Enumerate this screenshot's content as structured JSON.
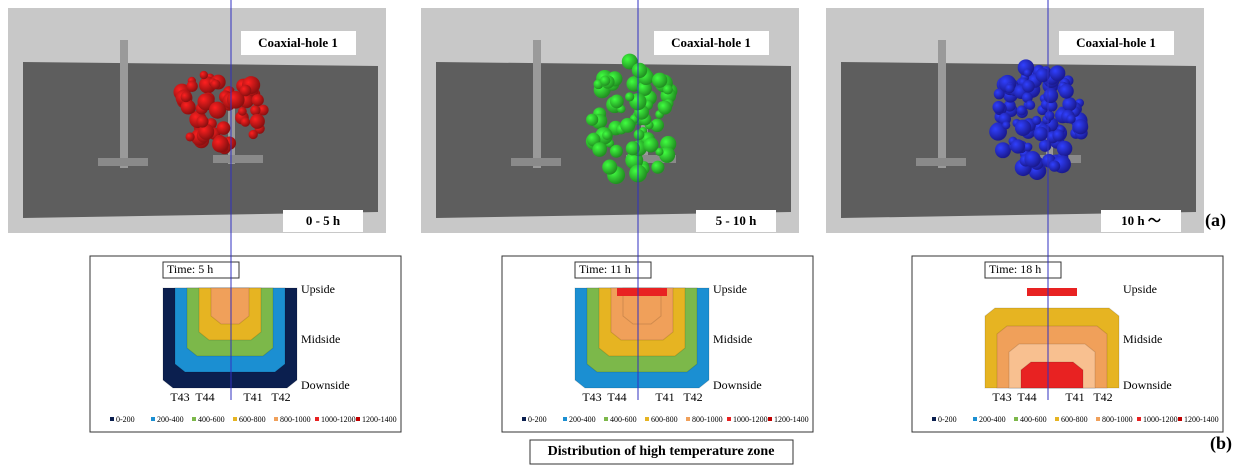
{
  "panels": [
    {
      "hole_label": "Coaxial-hole 1",
      "period": "0 - 5 h"
    },
    {
      "hole_label": "Coaxial-hole 1",
      "period": "5 - 10 h"
    },
    {
      "hole_label": "Coaxial-hole 1",
      "period": "10 h ～"
    }
  ],
  "label_a": "(a)",
  "label_b": "(b)",
  "contours": [
    {
      "time": "Time:  5 h"
    },
    {
      "time": "Time:  11 h"
    },
    {
      "time": "Time:  18 h"
    }
  ],
  "positions": [
    "Upside",
    "Midside",
    "Downside"
  ],
  "sensors": [
    "T43",
    "T44",
    "T41",
    "T42"
  ],
  "legend": [
    {
      "label": "0-200",
      "color": "#0b1f4f"
    },
    {
      "label": "200-400",
      "color": "#1b8fd2"
    },
    {
      "label": "400-600",
      "color": "#7cb84a"
    },
    {
      "label": "600-800",
      "color": "#e6b422"
    },
    {
      "label": "800-1000",
      "color": "#f0a05a"
    },
    {
      "label": "1000-1200",
      "color": "#e82222"
    },
    {
      "label": "1200-1400",
      "color": "#c00000"
    }
  ],
  "caption": "Distribution of high temperature zone"
}
